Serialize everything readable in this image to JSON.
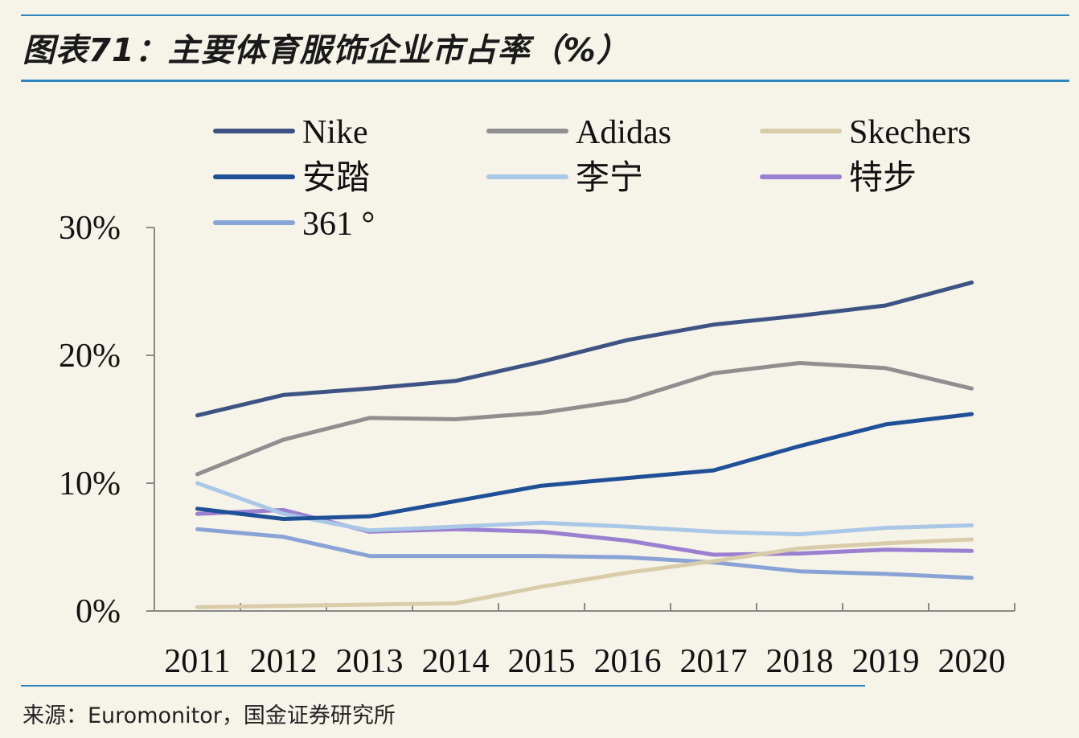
{
  "header": {
    "title": "图表71：主要体育服饰企业市占率（%）"
  },
  "footer": {
    "source": "来源：Euromonitor，国金证券研究所"
  },
  "colors": {
    "background": "#f6f3e9",
    "rule": "#2e86c1",
    "axis": "#888888"
  },
  "chart_data": {
    "type": "line",
    "title": "图表71：主要体育服饰企业市占率（%）",
    "xlabel": "",
    "ylabel": "",
    "x": [
      "2011",
      "2012",
      "2013",
      "2014",
      "2015",
      "2016",
      "2017",
      "2018",
      "2019",
      "2020"
    ],
    "ylim": [
      0,
      30
    ],
    "yticks": [
      0,
      10,
      20,
      30
    ],
    "ytick_labels": [
      "0%",
      "10%",
      "20%",
      "30%"
    ],
    "grid": false,
    "legend_position": "top",
    "series": [
      {
        "name": "Nike",
        "color": "#3d5384",
        "values": [
          15.3,
          16.9,
          17.4,
          18.0,
          19.5,
          21.2,
          22.4,
          23.1,
          23.9,
          25.7
        ]
      },
      {
        "name": "Adidas",
        "color": "#8f8f8f",
        "values": [
          10.7,
          13.4,
          15.1,
          15.0,
          15.5,
          16.5,
          18.6,
          19.4,
          19.0,
          17.4
        ]
      },
      {
        "name": "Skechers",
        "color": "#d9ccab",
        "values": [
          0.3,
          0.4,
          0.5,
          0.6,
          1.9,
          3.0,
          3.9,
          4.9,
          5.3,
          5.6
        ]
      },
      {
        "name": "安踏",
        "color": "#1f4f96",
        "values": [
          8.0,
          7.2,
          7.4,
          8.6,
          9.8,
          10.4,
          11.0,
          12.9,
          14.6,
          15.4
        ]
      },
      {
        "name": "李宁",
        "color": "#a9c7e6",
        "values": [
          10.0,
          7.6,
          6.3,
          6.6,
          6.9,
          6.6,
          6.2,
          6.0,
          6.5,
          6.7
        ]
      },
      {
        "name": "特步",
        "color": "#9b7fd1",
        "values": [
          7.6,
          7.9,
          6.2,
          6.4,
          6.2,
          5.5,
          4.4,
          4.5,
          4.8,
          4.7
        ]
      },
      {
        "name": "361 °",
        "color": "#8aa3d6",
        "values": [
          6.4,
          5.8,
          4.3,
          4.3,
          4.3,
          4.2,
          3.8,
          3.1,
          2.9,
          2.6
        ]
      }
    ]
  }
}
